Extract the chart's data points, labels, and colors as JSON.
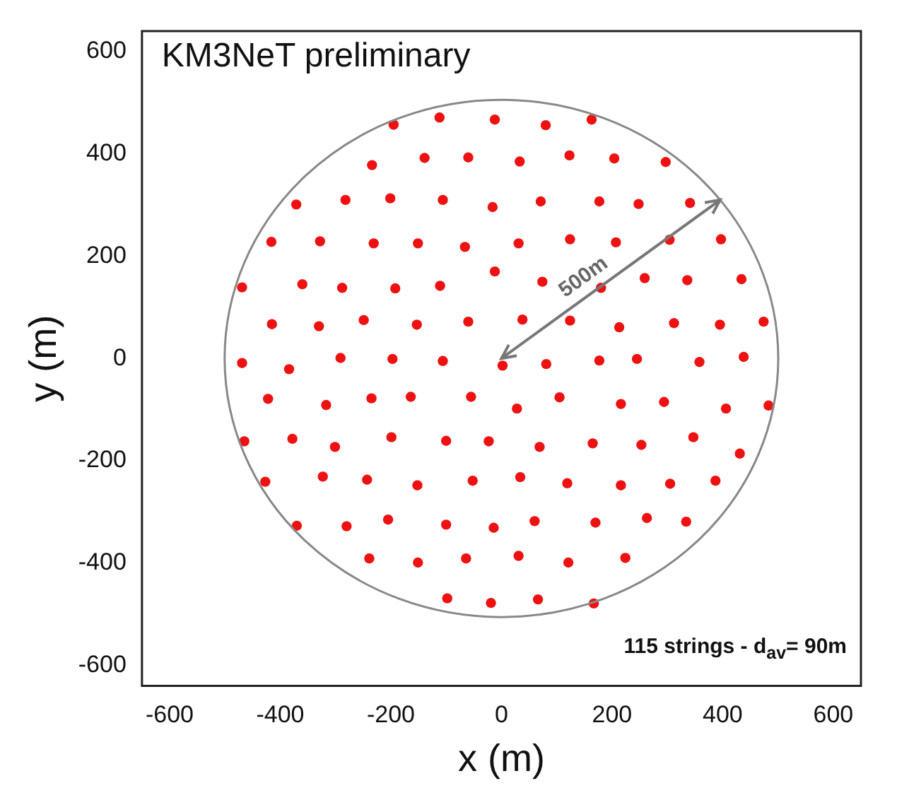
{
  "chart_data": {
    "type": "scatter",
    "title": "KM3NeT preliminary",
    "xlabel": "x (m)",
    "ylabel": "y (m)",
    "xlim": [
      -650,
      650
    ],
    "ylim": [
      -640,
      640
    ],
    "xticks": [
      -600,
      -400,
      -200,
      0,
      200,
      400,
      600
    ],
    "yticks": [
      -600,
      -400,
      -200,
      0,
      200,
      400,
      600
    ],
    "grid": false,
    "legend": false,
    "marker": "circle",
    "annotations": [
      "115 strings - d$_{av}$= 90m",
      "500m"
    ],
    "series": [
      {
        "color": "#ee1111",
        "x": [
          -195,
          -112,
          -12,
          -234,
          -139,
          -60,
          -371,
          -282,
          -201,
          -106,
          -16,
          -416,
          -328,
          -231,
          -151,
          -66,
          -12,
          -469,
          -360,
          -288,
          -192,
          -111,
          -415,
          -330,
          -249,
          -153,
          -60,
          -469,
          -384,
          -291,
          -197,
          -106,
          2,
          80,
          163,
          33,
          123,
          204,
          297,
          71,
          177,
          248,
          341,
          31,
          124,
          207,
          304,
          397,
          74,
          180,
          259,
          336,
          434,
          38,
          124,
          213,
          312,
          395,
          474,
          81,
          177,
          245,
          358,
          438,
          28,
          105,
          216,
          294,
          406,
          483,
          -23,
          69,
          165,
          253,
          347,
          431,
          34,
          119,
          216,
          305,
          387,
          -14,
          60,
          170,
          263,
          334,
          31,
          121,
          224,
          -19,
          66,
          167,
          -422,
          -317,
          -235,
          -164,
          -55,
          -465,
          -378,
          -301,
          -199,
          -100,
          -427,
          -323,
          -243,
          -152,
          -52,
          -370,
          -280,
          -205,
          -100,
          -239,
          -151,
          -64,
          -98
        ],
        "values": [
          457,
          471,
          467,
          378,
          392,
          393,
          301,
          310,
          313,
          310,
          296,
          228,
          229,
          225,
          225,
          218,
          170,
          139,
          145,
          138,
          137,
          142,
          67,
          63,
          75,
          66,
          72,
          -9,
          -21,
          1,
          -1,
          -5,
          -14,
          456,
          467,
          385,
          397,
          391,
          384,
          307,
          307,
          302,
          304,
          225,
          233,
          227,
          232,
          233,
          150,
          138,
          157,
          153,
          155,
          76,
          74,
          61,
          69,
          66,
          72,
          -11,
          -4,
          -1,
          -7,
          3,
          -98,
          -76,
          -89,
          -85,
          -98,
          -92,
          -162,
          -173,
          -166,
          -169,
          -154,
          -186,
          -232,
          -244,
          -248,
          -245,
          -239,
          -331,
          -318,
          -321,
          -312,
          -319,
          -386,
          -399,
          -390,
          -478,
          -471,
          -479,
          -79,
          -91,
          -78,
          -75,
          -75,
          -162,
          -157,
          -173,
          -154,
          -161,
          -241,
          -231,
          -237,
          -248,
          -239,
          -327,
          -328,
          -315,
          -325,
          -391,
          -399,
          -391,
          -469
        ]
      }
    ]
  }
}
